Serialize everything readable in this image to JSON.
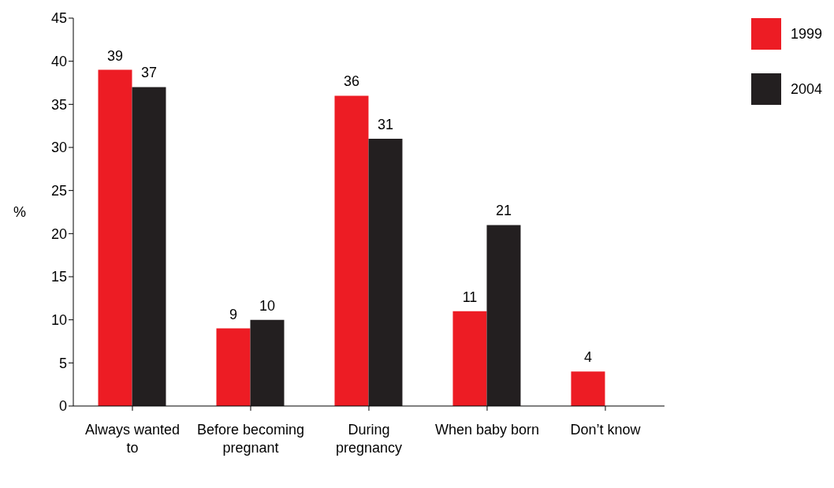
{
  "chart_data": {
    "type": "bar",
    "ylabel": "%",
    "categories": [
      "Always wanted to",
      "Before becoming pregnant",
      "During pregnancy",
      "When baby born",
      "Don’t know"
    ],
    "series": [
      {
        "name": "1999",
        "color": "#ed1c24",
        "values": [
          39,
          9,
          36,
          11,
          4
        ]
      },
      {
        "name": "2004",
        "color": "#231f20",
        "values": [
          37,
          10,
          31,
          21,
          null
        ]
      }
    ],
    "ylim": [
      0,
      45
    ],
    "yticks": [
      0,
      5,
      10,
      15,
      20,
      25,
      30,
      35,
      40,
      45
    ],
    "grid": false,
    "legend": "top right",
    "data_labels": true
  }
}
